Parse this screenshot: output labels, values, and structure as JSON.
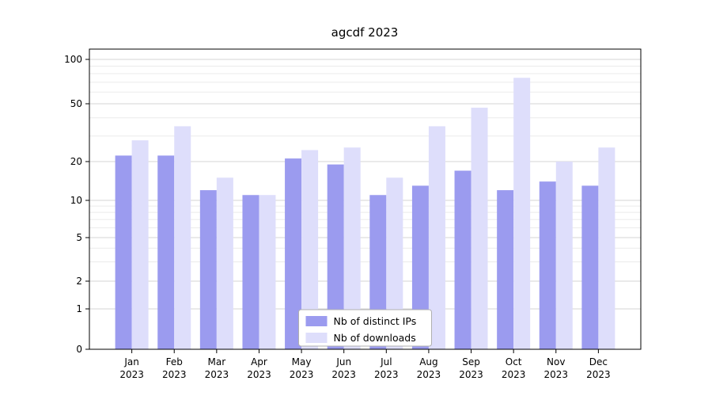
{
  "title": "agcdf 2023",
  "chart_data": {
    "type": "bar",
    "title": "agcdf 2023",
    "categories": [
      "Jan 2023",
      "Feb 2023",
      "Mar 2023",
      "Apr 2023",
      "May 2023",
      "Jun 2023",
      "Jul 2023",
      "Aug 2023",
      "Sep 2023",
      "Oct 2023",
      "Nov 2023",
      "Dec 2023"
    ],
    "series": [
      {
        "name": "Nb of distinct IPs",
        "color": "#9b9bef",
        "values": [
          22,
          22,
          12,
          11,
          21,
          19,
          11,
          13,
          17,
          12,
          14,
          13
        ]
      },
      {
        "name": "Nb of downloads",
        "color": "#dedefb",
        "values": [
          28,
          35,
          15,
          11,
          24,
          25,
          15,
          35,
          47,
          75,
          20,
          25
        ]
      }
    ],
    "yscale": "symlog",
    "yticks": [
      0,
      1,
      2,
      5,
      10,
      20,
      50,
      100
    ],
    "yticks_minor": [
      3,
      4,
      6,
      7,
      8,
      9,
      30,
      40,
      60,
      70,
      80,
      90
    ],
    "ylim": [
      0,
      120
    ],
    "grid": true,
    "legend_position": "lower center",
    "colors": {
      "axis": "#000000",
      "grid_major": "#d4d4d4",
      "grid_minor": "#ebebeb",
      "legend_border": "#b0b0b0",
      "background": "#ffffff"
    }
  }
}
